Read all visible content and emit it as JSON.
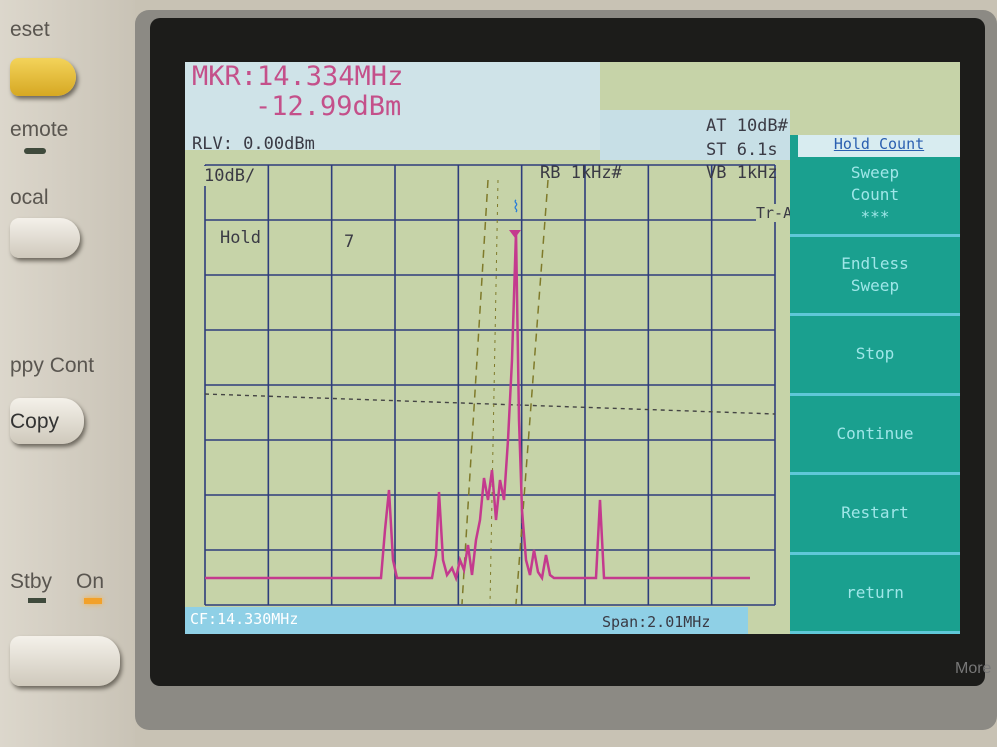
{
  "panel": {
    "labels": [
      "eset",
      "emote",
      "ocal",
      "ppy Cont",
      "Copy",
      "Stby",
      "On",
      "More"
    ]
  },
  "screen": {
    "marker_freq": "MKR:14.334MHz",
    "marker_level": "-12.99dBm",
    "ref_level": "RLV: 0.00dBm",
    "attenuation": "AT 10dB#",
    "sweep_time": "ST 6.1s",
    "video_bw": "VB 1kHz",
    "res_bw": "RB 1kHz#",
    "scale": "10dB/",
    "hold": "Hold",
    "hold_count": "7",
    "trace": "Tr-A",
    "center_freq": "CF:14.330MHz",
    "span": "Span:2.01MHz"
  },
  "softkeys": {
    "title": "Hold Count",
    "keys": [
      {
        "lines": [
          "Sweep",
          "Count",
          "***"
        ]
      },
      {
        "lines": [
          "Endless",
          "Sweep"
        ]
      },
      {
        "lines": [
          "Stop"
        ]
      },
      {
        "lines": [
          "Continue"
        ]
      },
      {
        "lines": [
          "Restart"
        ]
      },
      {
        "lines": [
          "return"
        ]
      }
    ]
  }
}
